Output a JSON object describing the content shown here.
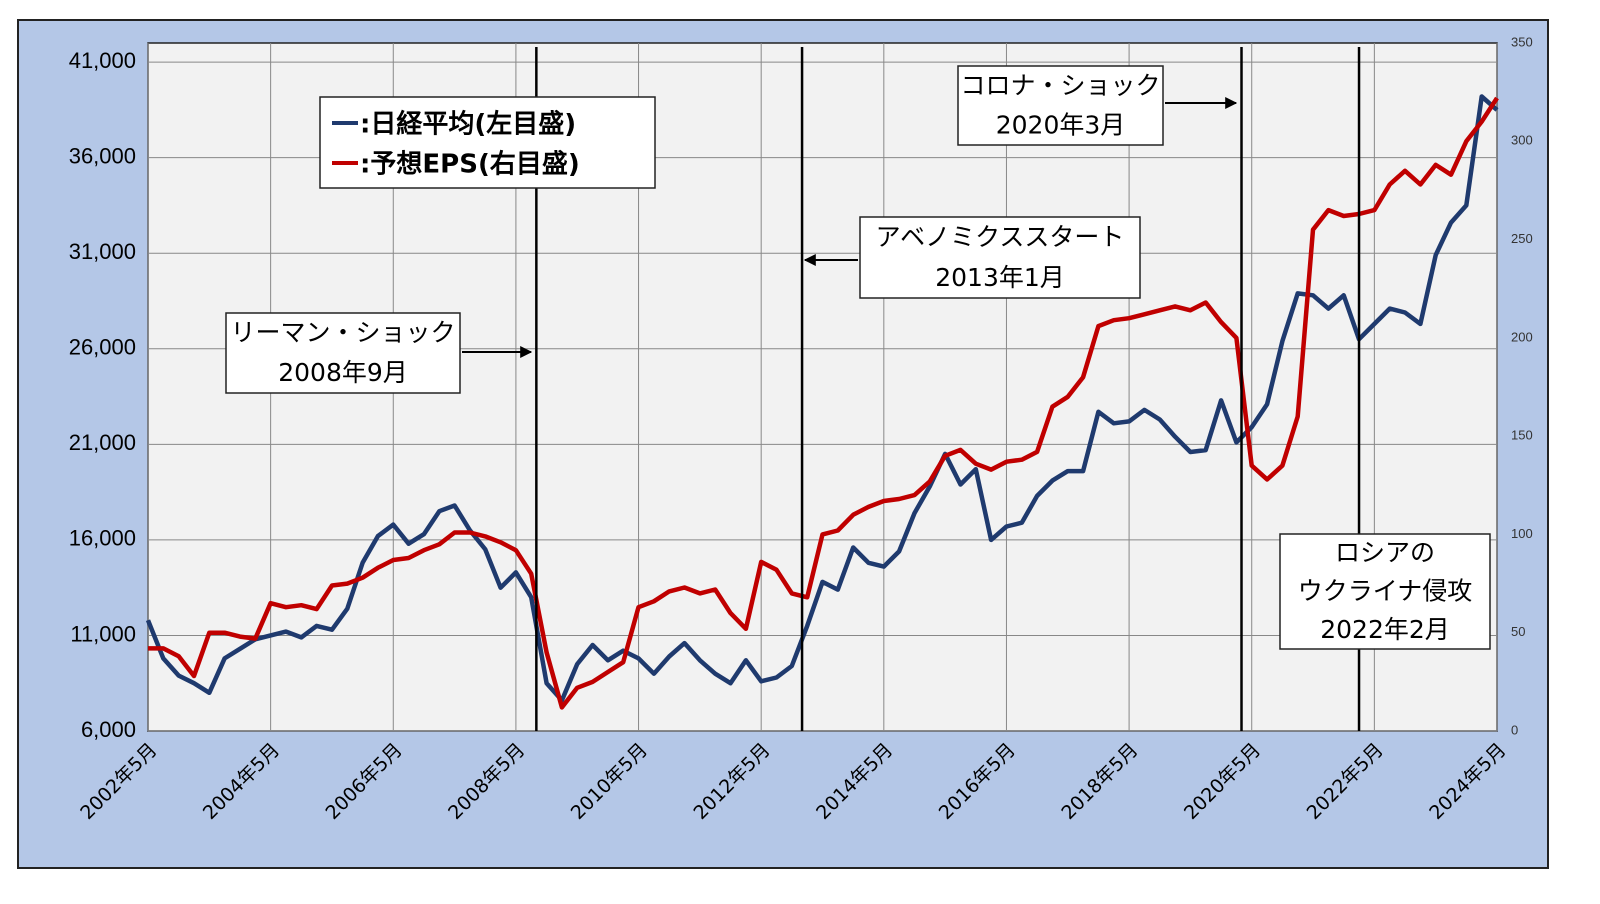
{
  "chart_data": {
    "type": "line",
    "x": [
      "2002-05",
      "2002-08",
      "2002-11",
      "2003-02",
      "2003-05",
      "2003-08",
      "2003-11",
      "2004-02",
      "2004-05",
      "2004-08",
      "2004-11",
      "2005-02",
      "2005-05",
      "2005-08",
      "2005-11",
      "2006-02",
      "2006-05",
      "2006-08",
      "2006-11",
      "2007-02",
      "2007-05",
      "2007-08",
      "2007-11",
      "2008-02",
      "2008-05",
      "2008-08",
      "2008-11",
      "2009-02",
      "2009-05",
      "2009-08",
      "2009-11",
      "2010-02",
      "2010-05",
      "2010-08",
      "2010-11",
      "2011-02",
      "2011-05",
      "2011-08",
      "2011-11",
      "2012-02",
      "2012-05",
      "2012-08",
      "2012-11",
      "2013-02",
      "2013-05",
      "2013-08",
      "2013-11",
      "2014-02",
      "2014-05",
      "2014-08",
      "2014-11",
      "2015-02",
      "2015-05",
      "2015-08",
      "2015-11",
      "2016-02",
      "2016-05",
      "2016-08",
      "2016-11",
      "2017-02",
      "2017-05",
      "2017-08",
      "2017-11",
      "2018-02",
      "2018-05",
      "2018-08",
      "2018-11",
      "2019-02",
      "2019-05",
      "2019-08",
      "2019-11",
      "2020-02",
      "2020-05",
      "2020-08",
      "2020-11",
      "2021-02",
      "2021-05",
      "2021-08",
      "2021-11",
      "2022-02",
      "2022-05",
      "2022-08",
      "2022-11",
      "2023-02",
      "2023-05",
      "2023-08",
      "2023-11",
      "2024-02",
      "2024-05"
    ],
    "series": [
      {
        "name": ":日経平均(左目盛)",
        "color": "#1f3a6e",
        "axis": "y",
        "values": [
          11800,
          9800,
          8900,
          8500,
          8000,
          9800,
          10300,
          10800,
          11000,
          11200,
          10900,
          11500,
          11300,
          12400,
          14800,
          16200,
          16800,
          15800,
          16300,
          17500,
          17800,
          16500,
          15500,
          13500,
          14300,
          13000,
          8500,
          7600,
          9500,
          10500,
          9700,
          10200,
          9800,
          9000,
          9900,
          10600,
          9700,
          9000,
          8500,
          9700,
          8600,
          8800,
          9400,
          11500,
          13800,
          13400,
          15600,
          14800,
          14600,
          15400,
          17400,
          18800,
          20500,
          18900,
          19700,
          16000,
          16700,
          16900,
          18300,
          19100,
          19600,
          19600,
          22700,
          22100,
          22200,
          22800,
          22300,
          21400,
          20600,
          20700,
          23300,
          21100,
          21900,
          23100,
          26400,
          28900,
          28800,
          28100,
          28800,
          26500,
          27300,
          28100,
          27900,
          27300,
          30900,
          32600,
          33500,
          39200,
          38500
        ]
      },
      {
        "name": ":予想EPS(右目盛)",
        "color": "#c00000",
        "axis": "y2",
        "values": [
          42,
          42,
          38,
          28,
          50,
          50,
          48,
          47,
          65,
          63,
          64,
          62,
          74,
          75,
          78,
          83,
          87,
          88,
          92,
          95,
          101,
          101,
          99,
          96,
          92,
          80,
          40,
          12,
          22,
          25,
          30,
          35,
          63,
          66,
          71,
          73,
          70,
          72,
          60,
          52,
          86,
          82,
          70,
          68,
          100,
          102,
          110,
          114,
          117,
          118,
          120,
          127,
          140,
          143,
          136,
          133,
          137,
          138,
          142,
          165,
          170,
          180,
          206,
          209,
          210,
          212,
          214,
          216,
          214,
          218,
          208,
          200,
          135,
          128,
          135,
          160,
          255,
          265,
          262,
          263,
          265,
          278,
          285,
          278,
          288,
          283,
          300,
          310,
          322
        ]
      }
    ],
    "xlim": [
      "2002-05",
      "2024-05"
    ],
    "xticks": [
      {
        "value": "2002-05",
        "label": "2002年5月"
      },
      {
        "value": "2004-05",
        "label": "2004年5月"
      },
      {
        "value": "2006-05",
        "label": "2006年5月"
      },
      {
        "value": "2008-05",
        "label": "2008年5月"
      },
      {
        "value": "2010-05",
        "label": "2010年5月"
      },
      {
        "value": "2012-05",
        "label": "2012年5月"
      },
      {
        "value": "2014-05",
        "label": "2014年5月"
      },
      {
        "value": "2016-05",
        "label": "2016年5月"
      },
      {
        "value": "2018-05",
        "label": "2018年5月"
      },
      {
        "value": "2020-05",
        "label": "2020年5月"
      },
      {
        "value": "2022-05",
        "label": "2022年5月"
      },
      {
        "value": "2024-05",
        "label": "2024年5月"
      }
    ],
    "ylim": [
      6000,
      42000
    ],
    "yticks": [
      {
        "value": 6000,
        "label": "6,000"
      },
      {
        "value": 11000,
        "label": "11,000"
      },
      {
        "value": 16000,
        "label": "16,000"
      },
      {
        "value": 21000,
        "label": "21,000"
      },
      {
        "value": 26000,
        "label": "26,000"
      },
      {
        "value": 31000,
        "label": "31,000"
      },
      {
        "value": 36000,
        "label": "36,000"
      },
      {
        "value": 41000,
        "label": "41,000"
      }
    ],
    "y2lim": [
      0,
      350
    ],
    "y2ticks": [
      0,
      50,
      100,
      150,
      200,
      250,
      300,
      350
    ],
    "grid": true,
    "legend": "top-left",
    "annotations": [
      {
        "x": "2008-09",
        "text": [
          "リーマン・ショック",
          "2008年9月"
        ]
      },
      {
        "x": "2013-01",
        "text": [
          "アベノミクススタート",
          "2013年1月"
        ]
      },
      {
        "x": "2020-03",
        "text": [
          "コロナ・ショック",
          "2020年3月"
        ]
      },
      {
        "x": "2022-02",
        "text": [
          "ロシアの",
          "ウクライナ侵攻",
          "2022年2月"
        ]
      }
    ]
  }
}
